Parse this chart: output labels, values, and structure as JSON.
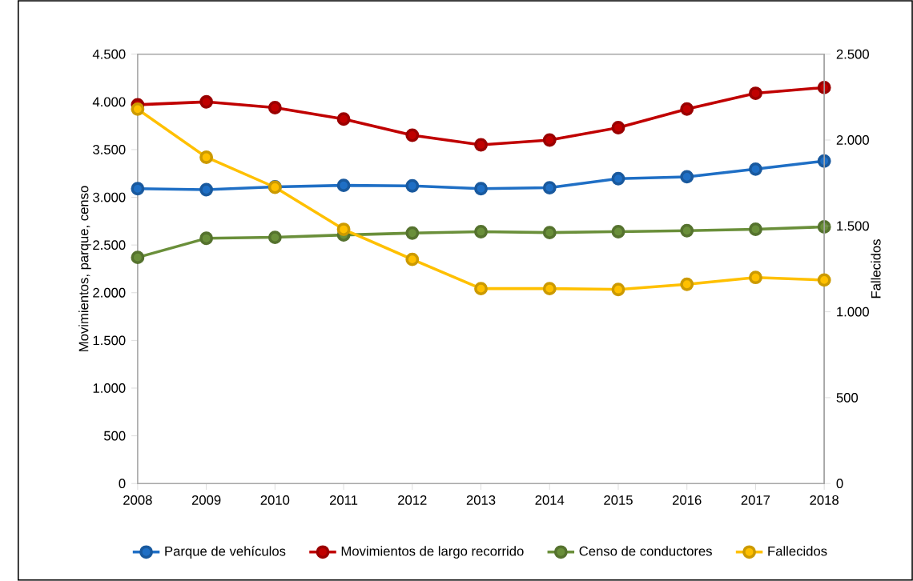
{
  "chart_data": {
    "type": "line",
    "ylabel": "Movimientos, parque, censo",
    "y2label": "Fallecidos",
    "x": [
      2008,
      2009,
      2010,
      2011,
      2012,
      2013,
      2014,
      2015,
      2016,
      2017,
      2018
    ],
    "xlim": [
      2008,
      2018
    ],
    "xticks": [
      2008,
      2009,
      2010,
      2011,
      2012,
      2013,
      2014,
      2015,
      2016,
      2017,
      2018
    ],
    "ylim": [
      0,
      4500
    ],
    "yticks": [
      {
        "value": 0,
        "label": "0"
      },
      {
        "value": 500,
        "label": "500"
      },
      {
        "value": 1000,
        "label": "1.000"
      },
      {
        "value": 1500,
        "label": "1.500"
      },
      {
        "value": 2000,
        "label": "2.000"
      },
      {
        "value": 2500,
        "label": "2.500"
      },
      {
        "value": 3000,
        "label": "3.000"
      },
      {
        "value": 3500,
        "label": "3.500"
      },
      {
        "value": 4000,
        "label": "4.000"
      },
      {
        "value": 4500,
        "label": "4.500"
      }
    ],
    "y2lim": [
      0,
      2500
    ],
    "y2ticks": [
      {
        "value": 0,
        "label": "0"
      },
      {
        "value": 500,
        "label": "500"
      },
      {
        "value": 1000,
        "label": "1.000"
      },
      {
        "value": 1500,
        "label": "1.500"
      },
      {
        "value": 2000,
        "label": "2.000"
      },
      {
        "value": 2500,
        "label": "2.500"
      }
    ],
    "series": [
      {
        "name": "Parque de vehículos",
        "color": "#1f6fc5",
        "values": [
          3090,
          3080,
          3110,
          3125,
          3120,
          3090,
          3100,
          3195,
          3215,
          3295,
          3380
        ]
      },
      {
        "name": "Movimientos de largo recorrido",
        "color": "#c00000",
        "values": [
          3970,
          4000,
          3940,
          3820,
          3650,
          3550,
          3600,
          3730,
          3925,
          4090,
          4150
        ]
      },
      {
        "name": "Censo de conductores",
        "color": "#6a8f3a",
        "values": [
          2370,
          2570,
          2580,
          2605,
          2625,
          2640,
          2630,
          2640,
          2650,
          2665,
          2690
        ]
      },
      {
        "name": "Fallecidos",
        "color": "#ffc000",
        "axis": "y2",
        "values": [
          2180,
          1900,
          1725,
          1480,
          1305,
          1135,
          1135,
          1130,
          1160,
          1200,
          1185
        ]
      }
    ],
    "marker": "circle",
    "line_style": "solid",
    "grid": false,
    "legend": "bottom"
  }
}
